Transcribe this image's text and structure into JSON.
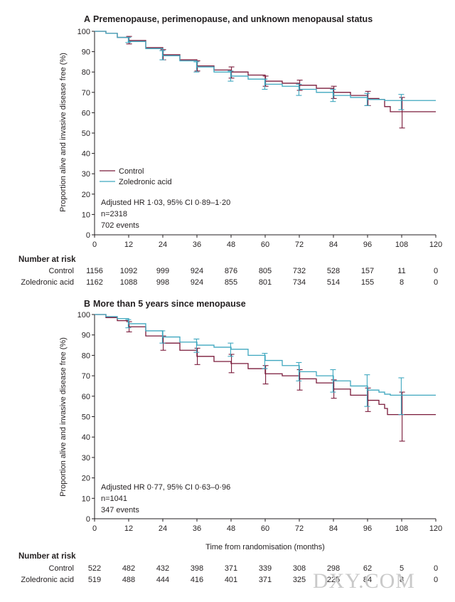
{
  "colors": {
    "control": "#7a1a3a",
    "zol": "#3fa7bf",
    "axis": "#231f20"
  },
  "watermark": "DXY.COM",
  "chart_data": [
    {
      "type": "line",
      "panel": "A",
      "title": "Premenopause, perimenopause, and unknown menopausal status",
      "ylabel": "Proportion alive and invasive disease free (%)",
      "xlabel": "",
      "xlim": [
        0,
        120
      ],
      "ylim": [
        0,
        100
      ],
      "xticks": [
        "0",
        "12",
        "24",
        "36",
        "48",
        "60",
        "72",
        "84",
        "96",
        "108",
        "120"
      ],
      "yticks": [
        "0",
        "10",
        "20",
        "30",
        "40",
        "50",
        "60",
        "70",
        "80",
        "90",
        "100"
      ],
      "legend": [
        "Control",
        "Zoledronic acid"
      ],
      "annotation": [
        "Adjusted HR 1·03, 95% CI 0·89–1·20",
        "n=2318",
        "702 events"
      ],
      "series": [
        {
          "name": "Control",
          "color": "control",
          "x": [
            0,
            4,
            8,
            12,
            18,
            24,
            30,
            36,
            42,
            48,
            54,
            60,
            66,
            72,
            78,
            84,
            90,
            96,
            100,
            102,
            104,
            120
          ],
          "y": [
            100,
            99,
            97,
            95.5,
            92,
            88.5,
            86,
            83,
            81,
            80,
            78.5,
            75.5,
            74.5,
            73.5,
            72,
            70,
            68.5,
            67,
            66.5,
            63,
            60.5,
            60.5
          ],
          "ci": [
            [
              12,
              93.8,
              97.5
            ],
            [
              24,
              86,
              91
            ],
            [
              36,
              80.5,
              85.5
            ],
            [
              48,
              77,
              82.5
            ],
            [
              60,
              73,
              78
            ],
            [
              72,
              71,
              76
            ],
            [
              84,
              67,
              73
            ],
            [
              96,
              63.5,
              70.5
            ],
            [
              108,
              52.5,
              67.5
            ]
          ]
        },
        {
          "name": "Zoledronic acid",
          "color": "zol",
          "x": [
            0,
            4,
            8,
            12,
            18,
            24,
            30,
            36,
            42,
            48,
            54,
            60,
            66,
            72,
            78,
            84,
            90,
            96,
            102,
            108,
            120
          ],
          "y": [
            100,
            99,
            97,
            95,
            91.5,
            88,
            85.5,
            82.5,
            80,
            78,
            76.5,
            74,
            73,
            71.5,
            70,
            68.5,
            67.5,
            66.5,
            66,
            66,
            66
          ],
          "ci": [
            [
              12,
              94.5,
              97
            ],
            [
              24,
              86,
              90.5
            ],
            [
              36,
              80,
              85
            ],
            [
              48,
              75.5,
              80.5
            ],
            [
              60,
              71.5,
              76.5
            ],
            [
              72,
              68.5,
              74
            ],
            [
              84,
              65.5,
              71.5
            ],
            [
              96,
              63.5,
              69.5
            ],
            [
              108,
              61.5,
              69
            ]
          ]
        }
      ],
      "risk_table": {
        "header": "Number at risk",
        "rows": [
          {
            "label": "Control",
            "values": [
              "1156",
              "1092",
              "999",
              "924",
              "876",
              "805",
              "732",
              "528",
              "157",
              "11",
              "0"
            ]
          },
          {
            "label": "Zoledronic acid",
            "values": [
              "1162",
              "1088",
              "998",
              "924",
              "855",
              "801",
              "734",
              "514",
              "155",
              "8",
              "0"
            ]
          }
        ]
      }
    },
    {
      "type": "line",
      "panel": "B",
      "title": "More than 5 years since menopause",
      "ylabel": "Proportion alive and invasive disease free (%)",
      "xlabel": "Time from randomisation (months)",
      "xlim": [
        0,
        120
      ],
      "ylim": [
        0,
        100
      ],
      "xticks": [
        "0",
        "12",
        "24",
        "36",
        "48",
        "60",
        "72",
        "84",
        "96",
        "108",
        "120"
      ],
      "yticks": [
        "0",
        "10",
        "20",
        "30",
        "40",
        "50",
        "60",
        "70",
        "80",
        "90",
        "100"
      ],
      "legend": [],
      "annotation": [
        "Adjusted HR 0·77, 95% CI 0·63–0·96",
        "n=1041",
        "347 events"
      ],
      "series": [
        {
          "name": "Control",
          "color": "control",
          "x": [
            0,
            4,
            8,
            12,
            18,
            24,
            30,
            36,
            42,
            48,
            54,
            60,
            66,
            72,
            78,
            84,
            90,
            96,
            100,
            102,
            103,
            120
          ],
          "y": [
            100,
            98.5,
            97,
            94,
            89.5,
            86,
            82.5,
            79.5,
            77,
            76,
            73.5,
            71,
            70,
            68.5,
            66.5,
            63.5,
            60.5,
            58,
            56,
            54,
            51,
            51
          ],
          "ci": [
            [
              12,
              91.5,
              96.5
            ],
            [
              24,
              82.5,
              89.5
            ],
            [
              36,
              75.5,
              83.5
            ],
            [
              48,
              71.5,
              80.5
            ],
            [
              60,
              66,
              75
            ],
            [
              72,
              63,
              73
            ],
            [
              84,
              59,
              68
            ],
            [
              96,
              52.5,
              64
            ],
            [
              108,
              38,
              62
            ]
          ]
        },
        {
          "name": "Zoledronic acid",
          "color": "zol",
          "x": [
            0,
            4,
            8,
            12,
            18,
            24,
            30,
            36,
            42,
            48,
            54,
            60,
            66,
            72,
            78,
            84,
            90,
            96,
            100,
            102,
            104,
            120
          ],
          "y": [
            100,
            99,
            98,
            95.5,
            92,
            89,
            86.5,
            85,
            84,
            83,
            80,
            77.5,
            75,
            72,
            70,
            67.5,
            65,
            63,
            62,
            61,
            60.5,
            60.5
          ],
          "ci": [
            [
              12,
              93.5,
              97.5
            ],
            [
              24,
              86,
              92
            ],
            [
              36,
              81.5,
              88
            ],
            [
              48,
              79.5,
              86
            ],
            [
              60,
              73.5,
              81
            ],
            [
              72,
              67.5,
              76.5
            ],
            [
              84,
              62,
              73
            ],
            [
              96,
              55,
              70.5
            ],
            [
              108,
              51,
              69
            ]
          ]
        }
      ],
      "risk_table": {
        "header": "Number at risk",
        "rows": [
          {
            "label": "Control",
            "values": [
              "522",
              "482",
              "432",
              "398",
              "371",
              "339",
              "308",
              "298",
              "62",
              "5",
              "0"
            ]
          },
          {
            "label": "Zoledronic acid",
            "values": [
              "519",
              "488",
              "444",
              "416",
              "401",
              "371",
              "325",
              "225",
              "84",
              "8",
              "0"
            ]
          }
        ]
      }
    }
  ]
}
